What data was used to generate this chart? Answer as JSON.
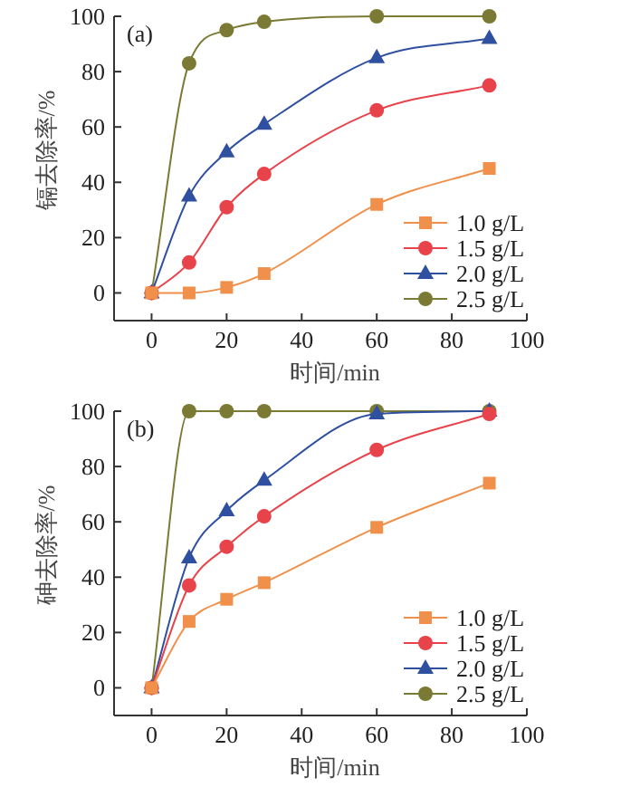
{
  "chart_data": [
    {
      "type": "line",
      "annotations": [
        "(a)"
      ],
      "xlabel": "时间/min",
      "ylabel": "镉去除率/%",
      "x": [
        0,
        10,
        20,
        30,
        60,
        90
      ],
      "xlim": [
        -10,
        100
      ],
      "xticks": [
        0,
        20,
        40,
        60,
        80,
        100
      ],
      "ylim": [
        -10,
        100
      ],
      "yticks": [
        0,
        20,
        40,
        60,
        80,
        100
      ],
      "legend": "bottom right",
      "grid": false,
      "series": [
        {
          "name": "1.0 g/L",
          "color": "#f0904a",
          "marker": "square",
          "values": [
            0,
            0,
            2,
            7,
            32,
            45
          ]
        },
        {
          "name": "1.5 g/L",
          "color": "#e8434a",
          "marker": "circle",
          "values": [
            0,
            11,
            31,
            43,
            66,
            75
          ]
        },
        {
          "name": "2.0 g/L",
          "color": "#2f4fa0",
          "marker": "triangle",
          "values": [
            0,
            35,
            51,
            61,
            85,
            92
          ]
        },
        {
          "name": "2.5 g/L",
          "color": "#7b7a34",
          "marker": "circle",
          "values": [
            0,
            83,
            95,
            98,
            100,
            100
          ]
        }
      ]
    },
    {
      "type": "line",
      "annotations": [
        "(b)"
      ],
      "xlabel": "时间/min",
      "ylabel": "砷去除率/%",
      "x": [
        0,
        10,
        20,
        30,
        60,
        90
      ],
      "xlim": [
        -10,
        100
      ],
      "xticks": [
        0,
        20,
        40,
        60,
        80,
        100
      ],
      "ylim": [
        -10,
        100
      ],
      "yticks": [
        0,
        20,
        40,
        60,
        80,
        100
      ],
      "legend": "bottom right",
      "grid": false,
      "series": [
        {
          "name": "1.0 g/L",
          "color": "#f0904a",
          "marker": "square",
          "values": [
            0,
            24,
            32,
            38,
            58,
            74
          ]
        },
        {
          "name": "1.5 g/L",
          "color": "#e8434a",
          "marker": "circle",
          "values": [
            0,
            37,
            51,
            62,
            86,
            99
          ]
        },
        {
          "name": "2.0 g/L",
          "color": "#2f4fa0",
          "marker": "triangle",
          "values": [
            0,
            47,
            64,
            75,
            99,
            100
          ]
        },
        {
          "name": "2.5 g/L",
          "color": "#7b7a34",
          "marker": "circle",
          "values": [
            0,
            100,
            100,
            100,
            100,
            100
          ]
        }
      ]
    }
  ]
}
